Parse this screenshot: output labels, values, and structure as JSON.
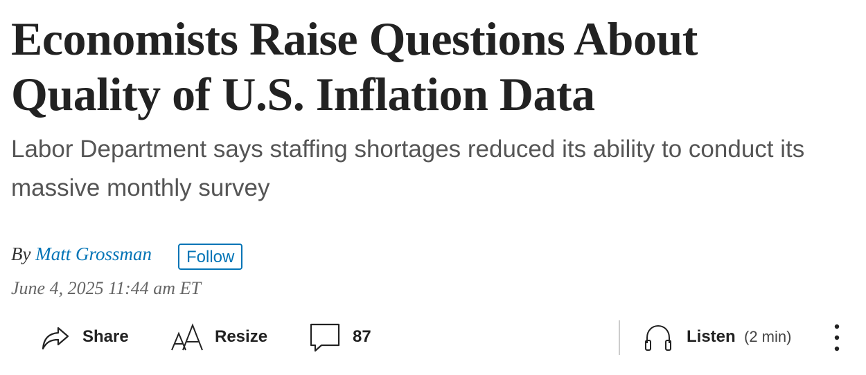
{
  "headline": "Economists Raise Questions About Quality of U.S. Inflation Data",
  "dek": "Labor Department says staffing shortages reduced its ability to conduct its massive monthly survey",
  "byline": {
    "prefix": "By",
    "author": "Matt Grossman",
    "follow": "Follow"
  },
  "timestamp": "June 4, 2025 11:44 am ET",
  "toolbar": {
    "share": "Share",
    "resize": "Resize",
    "comments": 87,
    "listen": "Listen",
    "duration": "(2 min)"
  }
}
